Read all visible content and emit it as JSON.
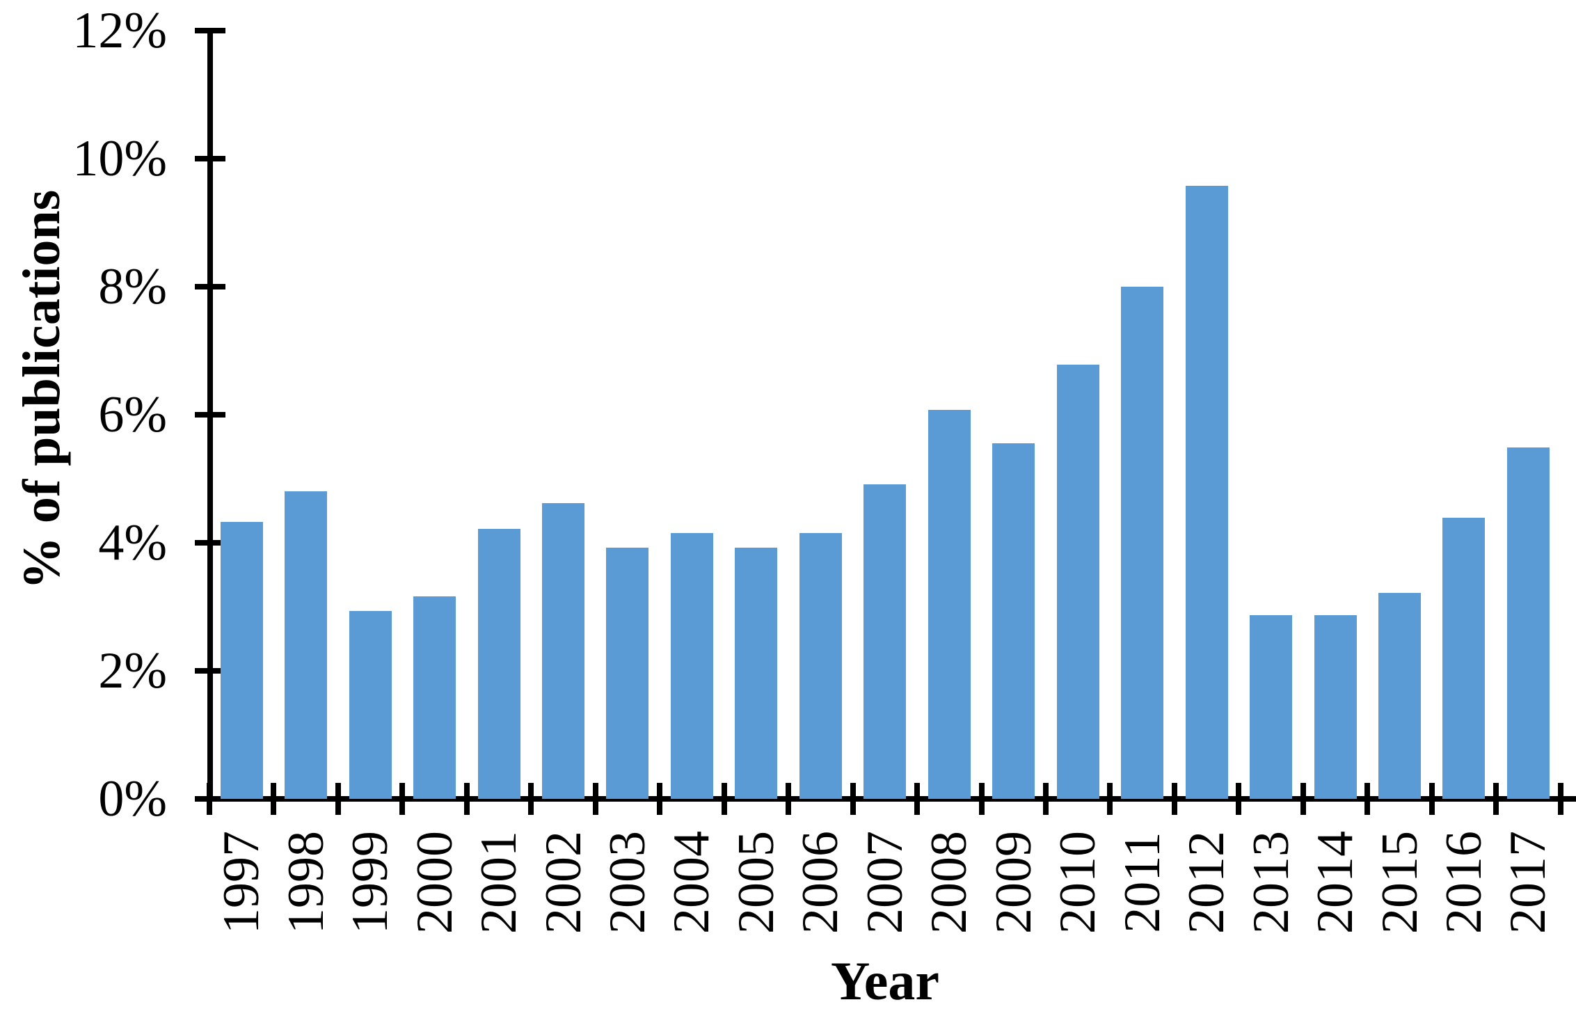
{
  "chart_data": {
    "type": "bar",
    "title": "",
    "xlabel": "Year",
    "ylabel": "% of publications",
    "categories": [
      "1997",
      "1998",
      "1999",
      "2000",
      "2001",
      "2002",
      "2003",
      "2004",
      "2005",
      "2006",
      "2007",
      "2008",
      "2009",
      "2010",
      "2011",
      "2012",
      "2013",
      "2014",
      "2015",
      "2016",
      "2017"
    ],
    "values": [
      4.33,
      4.8,
      2.93,
      3.16,
      4.22,
      4.62,
      3.92,
      4.15,
      3.92,
      4.15,
      4.91,
      6.08,
      5.55,
      6.78,
      8.0,
      9.58,
      2.87,
      2.87,
      3.22,
      4.39,
      5.49
    ],
    "y_ticks": [
      "0%",
      "2%",
      "4%",
      "6%",
      "8%",
      "10%",
      "12%"
    ],
    "y_tick_values": [
      0,
      2,
      4,
      6,
      8,
      10,
      12
    ],
    "ylim": [
      0,
      12
    ],
    "grid": false,
    "legend_position": "none",
    "bar_color": "#5B9BD5",
    "axis_color": "#000000",
    "text_color": "#000000"
  }
}
